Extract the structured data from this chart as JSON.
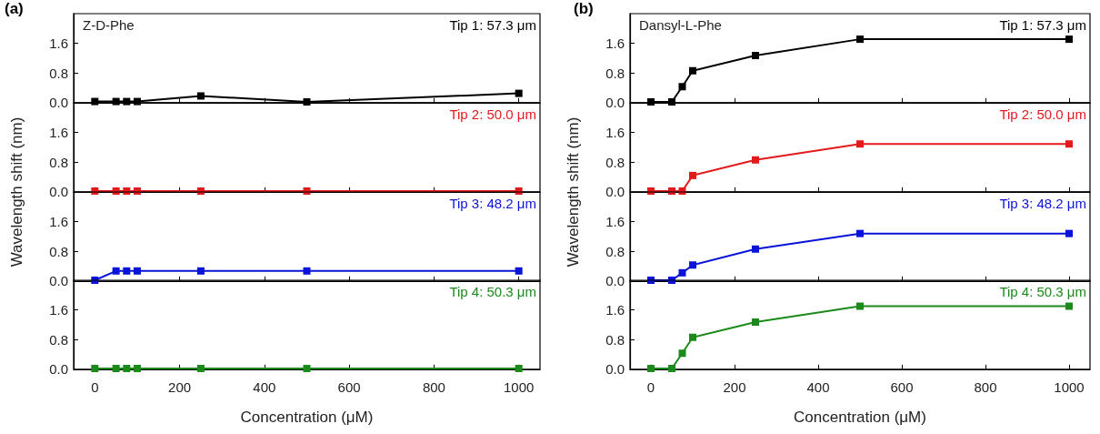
{
  "chart_data": [
    {
      "type": "line",
      "title": "(a)",
      "annotations": [
        "Z-D-Phe"
      ],
      "x": [
        0,
        50,
        75,
        100,
        250,
        500,
        1000
      ],
      "marker": "square",
      "tick_labels": "y",
      "xlim": [
        -50,
        1050
      ],
      "xticks": [
        0,
        200,
        400,
        600,
        800,
        1000
      ],
      "ylim": [
        0,
        2.4
      ],
      "yticks": [
        {
          "value": 0,
          "label": "0.0"
        },
        {
          "value": 0.8,
          "label": "0.8"
        },
        {
          "value": 1.6,
          "label": "1.6"
        }
      ],
      "series": [
        {
          "name": "Tip 1: 57.3 μm",
          "color": "#000000",
          "values": [
            0.03,
            0.03,
            0.03,
            0.03,
            0.18,
            0.02,
            0.25
          ]
        }
      ]
    },
    {
      "type": "line",
      "ylabel": "Wavelength shift (nm)",
      "x": [
        0,
        50,
        75,
        100,
        250,
        500,
        1000
      ],
      "marker": "square",
      "tick_labels": "y",
      "xlim": [
        -50,
        1050
      ],
      "xticks": [
        0,
        200,
        400,
        600,
        800,
        1000
      ],
      "ylim": [
        0,
        2.4
      ],
      "yticks": [
        {
          "value": 0,
          "label": "0.0"
        },
        {
          "value": 0.8,
          "label": "0.8"
        },
        {
          "value": 1.6,
          "label": "1.6"
        }
      ],
      "series": [
        {
          "name": "Tip 2: 50.0 μm",
          "color": "#e31a1c",
          "values": [
            0.02,
            0.02,
            0.02,
            0.02,
            0.02,
            0.02,
            0.02
          ]
        }
      ]
    },
    {
      "type": "line",
      "x": [
        0,
        50,
        75,
        100,
        250,
        500,
        1000
      ],
      "marker": "square",
      "tick_labels": "y",
      "xlim": [
        -50,
        1050
      ],
      "xticks": [
        0,
        200,
        400,
        600,
        800,
        1000
      ],
      "ylim": [
        0,
        2.4
      ],
      "yticks": [
        {
          "value": 0,
          "label": "0.0"
        },
        {
          "value": 0.8,
          "label": "0.8"
        },
        {
          "value": 1.6,
          "label": "1.6"
        }
      ],
      "series": [
        {
          "name": "Tip 3: 48.2 μm",
          "color": "#0a14d8",
          "values": [
            0.02,
            0.27,
            0.27,
            0.27,
            0.27,
            0.27,
            0.27
          ]
        }
      ]
    },
    {
      "type": "line",
      "xlabel": "Concentration (μM)",
      "x": [
        0,
        50,
        75,
        100,
        250,
        500,
        1000
      ],
      "marker": "square",
      "xlim": [
        -50,
        1050
      ],
      "xticks": [
        0,
        200,
        400,
        600,
        800,
        1000
      ],
      "ylim": [
        0,
        2.4
      ],
      "yticks": [
        {
          "value": 0,
          "label": "0.0"
        },
        {
          "value": 0.8,
          "label": "0.8"
        },
        {
          "value": 1.6,
          "label": "1.6"
        }
      ],
      "series": [
        {
          "name": "Tip 4: 50.3 μm",
          "color": "#1a8a1a",
          "values": [
            0.02,
            0.02,
            0.02,
            0.02,
            0.02,
            0.02,
            0.02
          ]
        }
      ]
    },
    {
      "type": "line",
      "title": "(b)",
      "annotations": [
        "Dansyl-L-Phe"
      ],
      "x": [
        0,
        50,
        75,
        100,
        250,
        500,
        1000
      ],
      "marker": "square",
      "tick_labels": "y",
      "xlim": [
        -50,
        1050
      ],
      "xticks": [
        0,
        200,
        400,
        600,
        800,
        1000
      ],
      "ylim": [
        0,
        2.4
      ],
      "yticks": [
        {
          "value": 0,
          "label": "0.0"
        },
        {
          "value": 0.8,
          "label": "0.8"
        },
        {
          "value": 1.6,
          "label": "1.6"
        }
      ],
      "series": [
        {
          "name": "Tip 1: 57.3 μm",
          "color": "#000000",
          "values": [
            0.02,
            0.02,
            0.43,
            0.86,
            1.27,
            1.71,
            1.71
          ]
        }
      ]
    },
    {
      "type": "line",
      "ylabel": "Wavelength shift (nm)",
      "x": [
        0,
        50,
        75,
        100,
        250,
        500,
        1000
      ],
      "marker": "square",
      "tick_labels": "y",
      "xlim": [
        -50,
        1050
      ],
      "xticks": [
        0,
        200,
        400,
        600,
        800,
        1000
      ],
      "ylim": [
        0,
        2.4
      ],
      "yticks": [
        {
          "value": 0,
          "label": "0.0"
        },
        {
          "value": 0.8,
          "label": "0.8"
        },
        {
          "value": 1.6,
          "label": "1.6"
        }
      ],
      "series": [
        {
          "name": "Tip 2: 50.0 μm",
          "color": "#e31a1c",
          "values": [
            0.02,
            0.02,
            0.02,
            0.44,
            0.86,
            1.29,
            1.29
          ]
        }
      ]
    },
    {
      "type": "line",
      "x": [
        0,
        50,
        75,
        100,
        250,
        500,
        1000
      ],
      "marker": "square",
      "tick_labels": "y",
      "xlim": [
        -50,
        1050
      ],
      "xticks": [
        0,
        200,
        400,
        600,
        800,
        1000
      ],
      "ylim": [
        0,
        2.4
      ],
      "yticks": [
        {
          "value": 0,
          "label": "0.0"
        },
        {
          "value": 0.8,
          "label": "0.8"
        },
        {
          "value": 1.6,
          "label": "1.6"
        }
      ],
      "series": [
        {
          "name": "Tip 3: 48.2 μm",
          "color": "#0a14d8",
          "values": [
            0.02,
            0.02,
            0.22,
            0.43,
            0.86,
            1.28,
            1.28
          ]
        }
      ]
    },
    {
      "type": "line",
      "xlabel": "Concentration (μM)",
      "x": [
        0,
        50,
        75,
        100,
        250,
        500,
        1000
      ],
      "marker": "square",
      "xlim": [
        -50,
        1050
      ],
      "xticks": [
        0,
        200,
        400,
        600,
        800,
        1000
      ],
      "ylim": [
        0,
        2.4
      ],
      "yticks": [
        {
          "value": 0,
          "label": "0.0"
        },
        {
          "value": 0.8,
          "label": "0.8"
        },
        {
          "value": 1.6,
          "label": "1.6"
        }
      ],
      "series": [
        {
          "name": "Tip 4: 50.3 μm",
          "color": "#1a8a1a",
          "values": [
            0.02,
            0.02,
            0.43,
            0.86,
            1.27,
            1.7,
            1.7
          ]
        }
      ]
    }
  ]
}
